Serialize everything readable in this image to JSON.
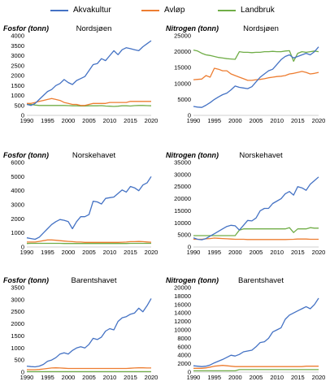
{
  "legend": {
    "items": [
      {
        "label": "Akvakultur",
        "color": "#4472C4"
      },
      {
        "label": "Avløp",
        "color": "#ED7D31"
      },
      {
        "label": "Landbruk",
        "color": "#70AD47"
      }
    ]
  },
  "chart_data": [
    {
      "type": "line",
      "title": "Nordsjøen",
      "ylabel": "Fosfor (tonn)",
      "ylim": [
        0,
        4000
      ],
      "yticks": [
        0,
        500,
        1000,
        1500,
        2000,
        2500,
        3000,
        3500,
        4000
      ],
      "xticks": [
        1990,
        1995,
        2000,
        2005,
        2010,
        2015,
        2020
      ],
      "x": [
        1990,
        1991,
        1992,
        1993,
        1994,
        1995,
        1996,
        1997,
        1998,
        1999,
        2000,
        2001,
        2002,
        2003,
        2004,
        2005,
        2006,
        2007,
        2008,
        2009,
        2010,
        2011,
        2012,
        2013,
        2014,
        2015,
        2016,
        2017,
        2018,
        2019,
        2020
      ],
      "series": [
        {
          "name": "Akvakultur",
          "values": [
            550,
            500,
            600,
            800,
            1000,
            1200,
            1300,
            1500,
            1600,
            1800,
            1650,
            1550,
            1750,
            1850,
            1950,
            2250,
            2550,
            2600,
            2850,
            2750,
            3000,
            3250,
            3050,
            3300,
            3400,
            3350,
            3300,
            3250,
            3450,
            3600,
            3750
          ]
        },
        {
          "name": "Avløp",
          "values": [
            600,
            600,
            650,
            700,
            750,
            800,
            850,
            800,
            750,
            650,
            600,
            550,
            550,
            500,
            500,
            550,
            600,
            600,
            600,
            600,
            650,
            650,
            650,
            650,
            650,
            700,
            700,
            700,
            700,
            700,
            700
          ]
        },
        {
          "name": "Landbruk",
          "values": [
            550,
            550,
            520,
            500,
            500,
            500,
            500,
            500,
            500,
            500,
            490,
            480,
            480,
            470,
            470,
            480,
            480,
            480,
            490,
            470,
            460,
            450,
            460,
            480,
            480,
            470,
            490,
            500,
            500,
            490,
            480
          ]
        }
      ]
    },
    {
      "type": "line",
      "title": "Nordsjøen",
      "ylabel": "Nitrogen (tonn)",
      "ylim": [
        0,
        25000
      ],
      "yticks": [
        0,
        5000,
        10000,
        15000,
        20000,
        25000
      ],
      "xticks": [
        1990,
        1995,
        2000,
        2005,
        2010,
        2015,
        2020
      ],
      "x": [
        1990,
        1991,
        1992,
        1993,
        1994,
        1995,
        1996,
        1997,
        1998,
        1999,
        2000,
        2001,
        2002,
        2003,
        2004,
        2005,
        2006,
        2007,
        2008,
        2009,
        2010,
        2011,
        2012,
        2013,
        2014,
        2015,
        2016,
        2017,
        2018,
        2019,
        2020
      ],
      "series": [
        {
          "name": "Akvakultur",
          "values": [
            2800,
            2600,
            2500,
            3200,
            4000,
            5000,
            5800,
            6500,
            7000,
            8000,
            9200,
            8800,
            8600,
            8400,
            9000,
            10500,
            12000,
            13000,
            14000,
            14500,
            16000,
            17500,
            18500,
            19000,
            18000,
            18500,
            19000,
            19500,
            19000,
            20000,
            21500
          ]
        },
        {
          "name": "Avløp",
          "values": [
            11200,
            11300,
            11400,
            12500,
            12000,
            14800,
            14500,
            14000,
            14000,
            13000,
            12500,
            12000,
            11500,
            11000,
            11000,
            11200,
            11300,
            11500,
            11800,
            12000,
            12200,
            12300,
            12500,
            13000,
            13200,
            13500,
            13800,
            13500,
            13000,
            13200,
            13500
          ]
        },
        {
          "name": "Landbruk",
          "values": [
            20500,
            20200,
            19500,
            19000,
            18800,
            18500,
            18200,
            18000,
            17800,
            17700,
            17600,
            20000,
            19800,
            19800,
            19700,
            19800,
            19800,
            20000,
            20000,
            20100,
            20000,
            20000,
            20200,
            20300,
            17000,
            19500,
            20000,
            19800,
            20000,
            20200,
            20000
          ]
        }
      ]
    },
    {
      "type": "line",
      "title": "Norskehavet",
      "ylabel": "Fosfor (tonn)",
      "ylim": [
        0,
        6000
      ],
      "yticks": [
        0,
        1000,
        2000,
        3000,
        4000,
        5000,
        6000
      ],
      "xticks": [
        1990,
        1995,
        2000,
        2005,
        2010,
        2015,
        2020
      ],
      "x": [
        1990,
        1991,
        1992,
        1993,
        1994,
        1995,
        1996,
        1997,
        1998,
        1999,
        2000,
        2001,
        2002,
        2003,
        2004,
        2005,
        2006,
        2007,
        2008,
        2009,
        2010,
        2011,
        2012,
        2013,
        2014,
        2015,
        2016,
        2017,
        2018,
        2019,
        2020
      ],
      "series": [
        {
          "name": "Akvakultur",
          "values": [
            650,
            600,
            550,
            700,
            1000,
            1300,
            1600,
            1800,
            1950,
            1900,
            1800,
            1300,
            1800,
            2150,
            2150,
            2300,
            3250,
            3200,
            3050,
            3450,
            3500,
            3550,
            3800,
            4050,
            3900,
            4300,
            4200,
            4000,
            4400,
            4550,
            5000
          ]
        },
        {
          "name": "Avløp",
          "values": [
            350,
            350,
            350,
            400,
            450,
            500,
            500,
            480,
            450,
            420,
            400,
            380,
            350,
            350,
            330,
            330,
            330,
            330,
            330,
            330,
            330,
            330,
            330,
            340,
            350,
            380,
            380,
            390,
            380,
            360,
            340
          ]
        },
        {
          "name": "Landbruk",
          "values": [
            250,
            260,
            260,
            260,
            260,
            260,
            260,
            260,
            260,
            250,
            250,
            250,
            250,
            250,
            250,
            250,
            250,
            250,
            250,
            250,
            250,
            250,
            250,
            250,
            250,
            260,
            260,
            260,
            260,
            260,
            260
          ]
        }
      ]
    },
    {
      "type": "line",
      "title": "Norskehavet",
      "ylabel": "Nitrogen (tonn)",
      "ylim": [
        0,
        35000
      ],
      "yticks": [
        0,
        5000,
        10000,
        15000,
        20000,
        25000,
        30000,
        35000
      ],
      "xticks": [
        1990,
        1995,
        2000,
        2005,
        2010,
        2015,
        2020
      ],
      "x": [
        1990,
        1991,
        1992,
        1993,
        1994,
        1995,
        1996,
        1997,
        1998,
        1999,
        2000,
        2001,
        2002,
        2003,
        2004,
        2005,
        2006,
        2007,
        2008,
        2009,
        2010,
        2011,
        2012,
        2013,
        2014,
        2015,
        2016,
        2017,
        2018,
        2019,
        2020
      ],
      "series": [
        {
          "name": "Akvakultur",
          "values": [
            3800,
            3200,
            3000,
            3500,
            4500,
            5500,
            6500,
            7500,
            8500,
            9000,
            8800,
            7000,
            9000,
            11000,
            10800,
            12000,
            15000,
            16000,
            16000,
            18000,
            19000,
            20000,
            22000,
            23000,
            21500,
            25000,
            24500,
            23500,
            26000,
            27500,
            29000
          ]
        },
        {
          "name": "Avløp",
          "values": [
            3200,
            3200,
            3200,
            3400,
            3500,
            3700,
            3600,
            3500,
            3400,
            3300,
            3200,
            3200,
            3200,
            3100,
            3100,
            3100,
            3100,
            3100,
            3100,
            3100,
            3100,
            3100,
            3100,
            3150,
            3200,
            3300,
            3300,
            3300,
            3200,
            3200,
            3200
          ]
        },
        {
          "name": "Landbruk",
          "values": [
            4700,
            4700,
            4700,
            4700,
            4700,
            4700,
            4700,
            4700,
            4700,
            4700,
            4700,
            7000,
            7500,
            7500,
            7500,
            7500,
            7500,
            7500,
            7500,
            7500,
            7500,
            7500,
            7500,
            8000,
            6000,
            7500,
            7500,
            7500,
            8000,
            7800,
            7800
          ]
        }
      ]
    },
    {
      "type": "line",
      "title": "Barentshavet",
      "ylabel": "Fosfor (tonn)",
      "ylim": [
        0,
        3500
      ],
      "yticks": [
        0,
        500,
        1000,
        1500,
        2000,
        2500,
        3000,
        3500
      ],
      "xticks": [
        1990,
        1995,
        2000,
        2005,
        2010,
        2015,
        2020
      ],
      "x": [
        1990,
        1991,
        1992,
        1993,
        1994,
        1995,
        1996,
        1997,
        1998,
        1999,
        2000,
        2001,
        2002,
        2003,
        2004,
        2005,
        2006,
        2007,
        2008,
        2009,
        2010,
        2011,
        2012,
        2013,
        2014,
        2015,
        2016,
        2017,
        2018,
        2019,
        2020
      ],
      "series": [
        {
          "name": "Akvakultur",
          "values": [
            250,
            230,
            220,
            250,
            320,
            450,
            500,
            600,
            750,
            800,
            750,
            900,
            1000,
            1050,
            1000,
            1150,
            1400,
            1350,
            1450,
            1700,
            1800,
            1750,
            2100,
            2250,
            2300,
            2400,
            2450,
            2650,
            2500,
            2750,
            3050
          ]
        },
        {
          "name": "Avløp",
          "values": [
            100,
            100,
            100,
            110,
            130,
            150,
            170,
            180,
            170,
            160,
            150,
            150,
            150,
            150,
            150,
            150,
            150,
            150,
            150,
            150,
            150,
            150,
            150,
            150,
            150,
            160,
            170,
            180,
            180,
            170,
            170
          ]
        },
        {
          "name": "Landbruk",
          "values": [
            20,
            20,
            20,
            20,
            20,
            20,
            20,
            20,
            20,
            20,
            20,
            20,
            20,
            20,
            20,
            20,
            20,
            20,
            20,
            20,
            20,
            20,
            20,
            20,
            20,
            20,
            20,
            20,
            20,
            20,
            20
          ]
        }
      ]
    },
    {
      "type": "line",
      "title": "Barentshavet",
      "ylabel": "Nitrogen (tonn)",
      "ylim": [
        0,
        20000
      ],
      "yticks": [
        0,
        2000,
        4000,
        6000,
        8000,
        10000,
        12000,
        14000,
        16000,
        18000,
        20000
      ],
      "xticks": [
        1990,
        1995,
        2000,
        2005,
        2010,
        2015,
        2020
      ],
      "x": [
        1990,
        1991,
        1992,
        1993,
        1994,
        1995,
        1996,
        1997,
        1998,
        1999,
        2000,
        2001,
        2002,
        2003,
        2004,
        2005,
        2006,
        2007,
        2008,
        2009,
        2010,
        2011,
        2012,
        2013,
        2014,
        2015,
        2016,
        2017,
        2018,
        2019,
        2020
      ],
      "series": [
        {
          "name": "Akvakultur",
          "values": [
            1500,
            1400,
            1300,
            1400,
            1700,
            2200,
            2600,
            3000,
            3500,
            4000,
            3800,
            4200,
            4800,
            5000,
            5200,
            6000,
            7000,
            7200,
            8000,
            9500,
            10000,
            10500,
            12500,
            13500,
            14000,
            14500,
            15000,
            15500,
            15000,
            16000,
            17500
          ]
        },
        {
          "name": "Avløp",
          "values": [
            900,
            900,
            900,
            1000,
            1200,
            1400,
            1500,
            1600,
            1500,
            1400,
            1300,
            1300,
            1300,
            1300,
            1300,
            1300,
            1300,
            1300,
            1300,
            1300,
            1300,
            1300,
            1300,
            1300,
            1300,
            1300,
            1300,
            1400,
            1400,
            1400,
            1400
          ]
        },
        {
          "name": "Landbruk",
          "values": [
            300,
            300,
            300,
            300,
            300,
            300,
            300,
            300,
            300,
            300,
            300,
            600,
            600,
            600,
            600,
            600,
            600,
            600,
            600,
            600,
            600,
            600,
            600,
            600,
            600,
            600,
            600,
            600,
            600,
            600,
            600
          ]
        }
      ]
    }
  ]
}
